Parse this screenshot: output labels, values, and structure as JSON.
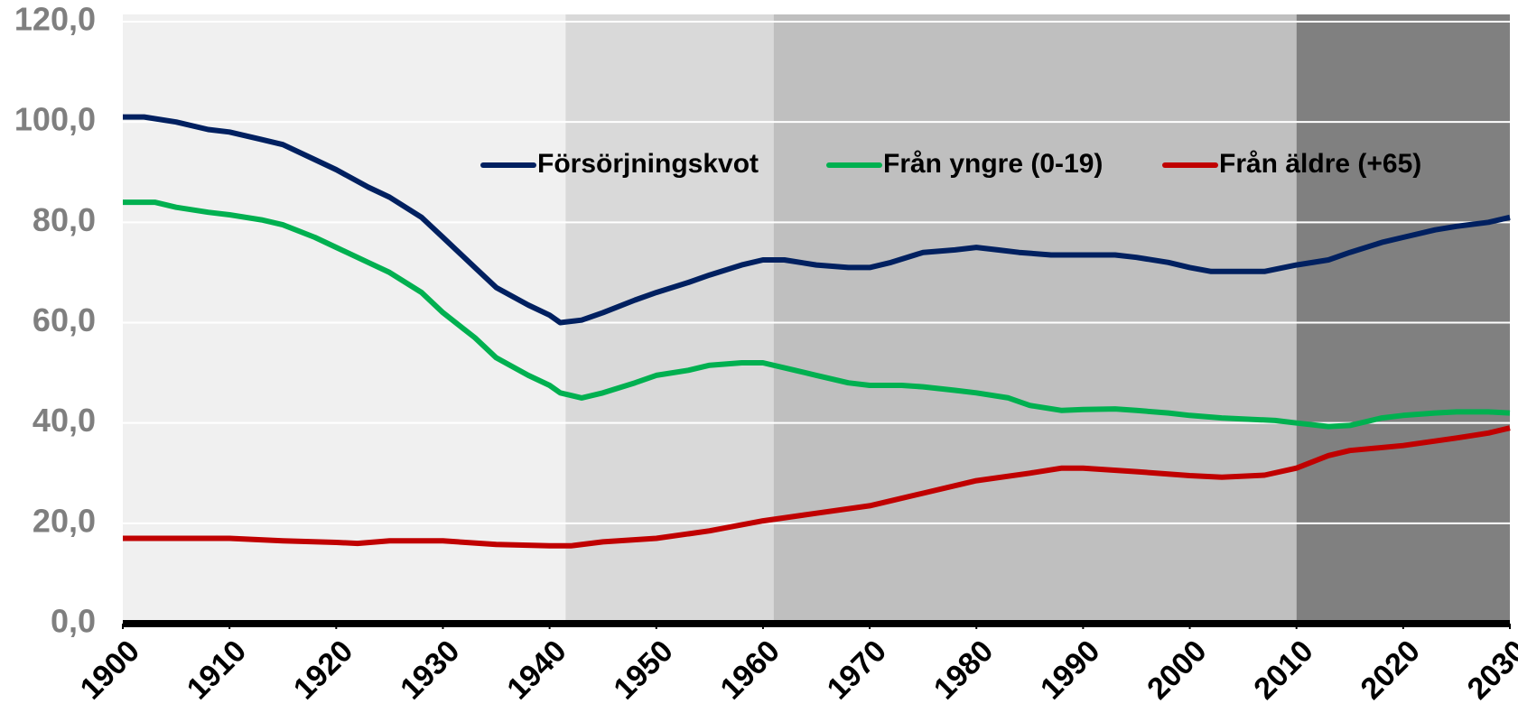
{
  "chart_data": {
    "type": "line",
    "xlim": [
      1900,
      2030
    ],
    "ylim": [
      0,
      120
    ],
    "xticks": [
      1900,
      1910,
      1920,
      1930,
      1940,
      1950,
      1960,
      1970,
      1980,
      1990,
      2000,
      2010,
      2020,
      2030
    ],
    "yticks": [
      {
        "value": 0,
        "label": "0,0"
      },
      {
        "value": 20,
        "label": "20,0"
      },
      {
        "value": 40,
        "label": "40,0"
      },
      {
        "value": 60,
        "label": "60,0"
      },
      {
        "value": 80,
        "label": "80,0"
      },
      {
        "value": 100,
        "label": "100,0"
      },
      {
        "value": 120,
        "label": "120,0"
      }
    ],
    "grid": true,
    "grid_color": "#ffffff",
    "bands": [
      {
        "from": 1900,
        "to": 1941.5,
        "color": "#f0f0f0"
      },
      {
        "from": 1941.5,
        "to": 1961,
        "color": "#d9d9d9"
      },
      {
        "from": 1961,
        "to": 2010,
        "color": "#bfbfbf"
      },
      {
        "from": 2010,
        "to": 2030,
        "color": "#808080"
      }
    ],
    "legend": "top",
    "series": [
      {
        "name": "Försörjningskvot",
        "color": "#002060",
        "x": [
          1900,
          1902,
          1905,
          1908,
          1910,
          1913,
          1915,
          1918,
          1920,
          1923,
          1925,
          1928,
          1930,
          1933,
          1935,
          1938,
          1940,
          1941,
          1943,
          1945,
          1948,
          1950,
          1953,
          1955,
          1958,
          1960,
          1962,
          1965,
          1968,
          1970,
          1972,
          1975,
          1978,
          1980,
          1982,
          1984,
          1987,
          1990,
          1993,
          1995,
          1998,
          2000,
          2002,
          2005,
          2007,
          2010,
          2013,
          2015,
          2018,
          2020,
          2023,
          2025,
          2028,
          2030
        ],
        "values": [
          101,
          101,
          100,
          98.5,
          98,
          96.5,
          95.5,
          92.5,
          90.5,
          87,
          85,
          81,
          77,
          71,
          67,
          63.5,
          61.5,
          60,
          60.5,
          62,
          64.5,
          66,
          68,
          69.5,
          71.5,
          72.5,
          72.5,
          71.5,
          71,
          71,
          72,
          74,
          74.5,
          75,
          74.5,
          74,
          73.5,
          73.5,
          73.5,
          73,
          72,
          71,
          70.2,
          70.2,
          70.2,
          71.5,
          72.5,
          74,
          76,
          77,
          78.5,
          79.2,
          80,
          81
        ]
      },
      {
        "name": "Från yngre (0-19)",
        "color": "#00b050",
        "x": [
          1900,
          1903,
          1905,
          1908,
          1910,
          1913,
          1915,
          1918,
          1920,
          1923,
          1925,
          1928,
          1930,
          1933,
          1935,
          1938,
          1940,
          1941,
          1943,
          1945,
          1948,
          1950,
          1953,
          1955,
          1958,
          1960,
          1963,
          1965,
          1968,
          1970,
          1973,
          1975,
          1978,
          1980,
          1983,
          1985,
          1988,
          1990,
          1993,
          1995,
          1998,
          2000,
          2003,
          2005,
          2008,
          2010,
          2013,
          2015,
          2018,
          2020,
          2023,
          2025,
          2028,
          2030
        ],
        "values": [
          84,
          84,
          83,
          82,
          81.5,
          80.5,
          79.5,
          77,
          75,
          72,
          70,
          66,
          62,
          57,
          53,
          49.5,
          47.5,
          46,
          45,
          46,
          48,
          49.5,
          50.5,
          51.5,
          52,
          52,
          50.5,
          49.5,
          48,
          47.5,
          47.5,
          47.2,
          46.5,
          46,
          45,
          43.5,
          42.5,
          42.7,
          42.8,
          42.5,
          42,
          41.5,
          41,
          40.8,
          40.5,
          40,
          39.3,
          39.5,
          41,
          41.5,
          42,
          42.2,
          42.2,
          42
        ]
      },
      {
        "name": "Från äldre (+65)",
        "color": "#c00000",
        "x": [
          1900,
          1905,
          1910,
          1915,
          1920,
          1922,
          1925,
          1930,
          1935,
          1940,
          1942,
          1945,
          1950,
          1955,
          1960,
          1965,
          1970,
          1975,
          1980,
          1985,
          1988,
          1990,
          1995,
          2000,
          2003,
          2007,
          2010,
          2013,
          2015,
          2020,
          2025,
          2028,
          2030
        ],
        "values": [
          17,
          17,
          17,
          16.5,
          16.2,
          16,
          16.5,
          16.5,
          15.8,
          15.5,
          15.5,
          16.3,
          17,
          18.5,
          20.5,
          22,
          23.5,
          26,
          28.5,
          30,
          31,
          31,
          30.3,
          29.5,
          29.2,
          29.6,
          31,
          33.5,
          34.5,
          35.5,
          37,
          38,
          39
        ]
      }
    ]
  }
}
